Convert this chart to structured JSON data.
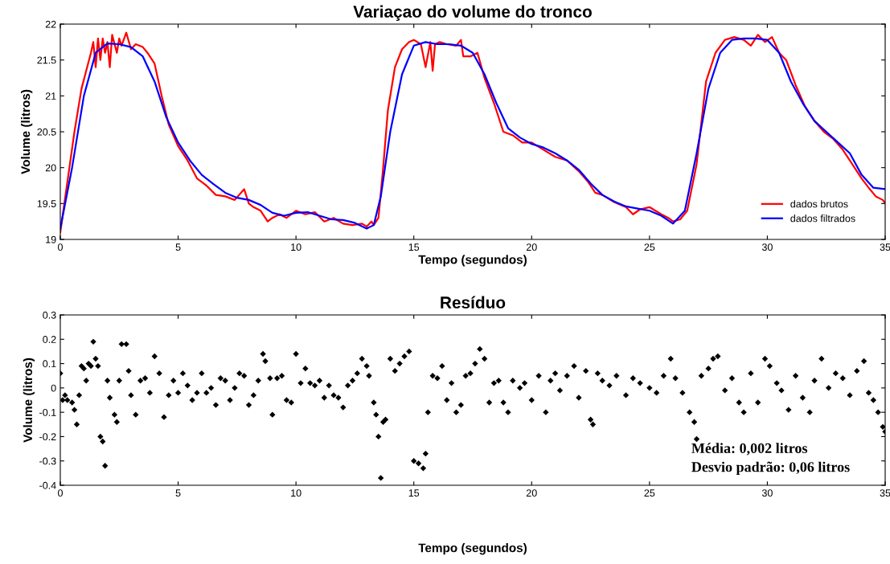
{
  "chart_data": [
    {
      "type": "line",
      "title": "Variaçao do volume do tronco",
      "xlabel": "Tempo (segundos)",
      "ylabel": "Volume (litros)",
      "xlim": [
        0,
        35
      ],
      "xticks": [
        0,
        5,
        10,
        15,
        20,
        25,
        30,
        35
      ],
      "ylim": [
        19,
        22
      ],
      "yticks": [
        19,
        19.5,
        20,
        20.5,
        21,
        21.5,
        22
      ],
      "grid": false,
      "legend": "lower right",
      "marker": "none",
      "line_style": "solid",
      "series": [
        {
          "name": "dados brutos",
          "color": "#ff0000",
          "x": [
            0,
            0.3,
            0.6,
            0.9,
            1.1,
            1.3,
            1.4,
            1.5,
            1.6,
            1.7,
            1.8,
            1.9,
            2.0,
            2.1,
            2.2,
            2.4,
            2.5,
            2.6,
            2.8,
            3.0,
            3.2,
            3.5,
            3.7,
            4.0,
            4.3,
            4.6,
            5.0,
            5.4,
            5.8,
            6.2,
            6.6,
            7.0,
            7.4,
            7.8,
            8.0,
            8.2,
            8.5,
            8.8,
            9.0,
            9.3,
            9.6,
            10.0,
            10.4,
            10.8,
            11.2,
            11.6,
            12.0,
            12.4,
            12.8,
            13.0,
            13.2,
            13.3,
            13.5,
            13.7,
            13.9,
            14.2,
            14.5,
            14.8,
            15.0,
            15.3,
            15.5,
            15.7,
            15.8,
            15.9,
            16.1,
            16.4,
            16.8,
            17.0,
            17.1,
            17.4,
            17.7,
            18.0,
            18.4,
            18.8,
            19.2,
            19.6,
            20.0,
            20.5,
            21.0,
            21.5,
            22.0,
            22.4,
            22.7,
            23.0,
            23.5,
            24.0,
            24.3,
            24.6,
            25.0,
            25.5,
            25.8,
            26.0,
            26.3,
            26.6,
            27.0,
            27.4,
            27.8,
            28.2,
            28.6,
            29.0,
            29.3,
            29.6,
            29.9,
            30.2,
            30.5,
            30.8,
            31.2,
            31.6,
            32.0,
            32.4,
            32.8,
            33.2,
            33.6,
            34.0,
            34.3,
            34.6,
            34.9,
            35.0
          ],
          "values": [
            19.1,
            19.8,
            20.5,
            21.1,
            21.35,
            21.6,
            21.75,
            21.4,
            21.8,
            21.5,
            21.8,
            21.6,
            21.75,
            21.4,
            21.85,
            21.6,
            21.8,
            21.7,
            21.88,
            21.65,
            21.72,
            21.68,
            21.6,
            21.45,
            21.0,
            20.6,
            20.3,
            20.1,
            19.85,
            19.75,
            19.62,
            19.6,
            19.55,
            19.7,
            19.5,
            19.45,
            19.4,
            19.25,
            19.3,
            19.35,
            19.3,
            19.4,
            19.35,
            19.38,
            19.25,
            19.3,
            19.22,
            19.2,
            19.22,
            19.18,
            19.25,
            19.2,
            19.3,
            20.0,
            20.8,
            21.4,
            21.65,
            21.75,
            21.78,
            21.72,
            21.4,
            21.75,
            21.35,
            21.72,
            21.75,
            21.72,
            21.7,
            21.78,
            21.55,
            21.55,
            21.6,
            21.25,
            20.9,
            20.5,
            20.45,
            20.35,
            20.35,
            20.25,
            20.15,
            20.1,
            19.95,
            19.8,
            19.65,
            19.62,
            19.52,
            19.45,
            19.35,
            19.42,
            19.45,
            19.35,
            19.3,
            19.25,
            19.28,
            19.4,
            20.05,
            21.2,
            21.6,
            21.78,
            21.82,
            21.78,
            21.7,
            21.85,
            21.75,
            21.82,
            21.6,
            21.5,
            21.15,
            20.85,
            20.65,
            20.5,
            20.4,
            20.25,
            20.05,
            19.85,
            19.72,
            19.6,
            19.55,
            19.5
          ]
        },
        {
          "name": "dados filtrados",
          "color": "#0000ff",
          "x": [
            0,
            0.5,
            1,
            1.5,
            2,
            2.5,
            3,
            3.5,
            4,
            4.5,
            5,
            5.5,
            6,
            6.5,
            7,
            7.5,
            8,
            8.5,
            9,
            9.5,
            10,
            10.5,
            11,
            11.5,
            12,
            12.5,
            13,
            13.3,
            13.6,
            14,
            14.5,
            15,
            15.5,
            16,
            16.5,
            17,
            17.5,
            18,
            18.5,
            19,
            19.5,
            20,
            20.5,
            21,
            21.5,
            22,
            22.5,
            23,
            23.5,
            24,
            24.5,
            25,
            25.5,
            26,
            26.5,
            27,
            27.5,
            28,
            28.5,
            29,
            29.5,
            30,
            30.5,
            31,
            31.5,
            32,
            32.5,
            33,
            33.5,
            34,
            34.5,
            35
          ],
          "values": [
            19.15,
            20.0,
            21.0,
            21.6,
            21.73,
            21.72,
            21.68,
            21.55,
            21.2,
            20.7,
            20.35,
            20.1,
            19.9,
            19.77,
            19.65,
            19.58,
            19.55,
            19.48,
            19.37,
            19.33,
            19.37,
            19.38,
            19.33,
            19.28,
            19.27,
            19.23,
            19.15,
            19.2,
            19.6,
            20.5,
            21.3,
            21.7,
            21.75,
            21.72,
            21.72,
            21.7,
            21.6,
            21.3,
            20.9,
            20.55,
            20.42,
            20.33,
            20.28,
            20.2,
            20.1,
            19.97,
            19.78,
            19.62,
            19.53,
            19.46,
            19.43,
            19.4,
            19.33,
            19.22,
            19.4,
            20.2,
            21.1,
            21.6,
            21.78,
            21.8,
            21.8,
            21.78,
            21.6,
            21.2,
            20.9,
            20.65,
            20.5,
            20.35,
            20.2,
            19.9,
            19.72,
            19.7
          ]
        }
      ]
    },
    {
      "type": "scatter",
      "title": "Resíduo",
      "xlabel": "Tempo (segundos)",
      "ylabel": "Volume (litros)",
      "xlim": [
        0,
        35
      ],
      "xticks": [
        0,
        5,
        10,
        15,
        20,
        25,
        30,
        35
      ],
      "ylim": [
        -0.4,
        0.3
      ],
      "yticks": [
        -0.4,
        -0.3,
        -0.2,
        -0.1,
        0,
        0.1,
        0.2,
        0.3
      ],
      "grid": false,
      "marker": "diamond",
      "annotations": [
        "Média: 0,002 litros",
        "Desvio padrão: 0,06 litros"
      ],
      "series": [
        {
          "color": "#000000",
          "x": [
            0.0,
            0.1,
            0.2,
            0.3,
            0.5,
            0.6,
            0.7,
            0.8,
            0.9,
            1.0,
            1.1,
            1.2,
            1.3,
            1.4,
            1.5,
            1.6,
            1.7,
            1.8,
            1.9,
            2.0,
            2.1,
            2.3,
            2.4,
            2.5,
            2.6,
            2.8,
            2.9,
            3.0,
            3.2,
            3.4,
            3.6,
            3.8,
            4.0,
            4.2,
            4.4,
            4.6,
            4.8,
            5.0,
            5.2,
            5.4,
            5.6,
            5.8,
            6.0,
            6.2,
            6.4,
            6.6,
            6.8,
            7.0,
            7.2,
            7.4,
            7.6,
            7.8,
            8.0,
            8.2,
            8.4,
            8.6,
            8.7,
            8.9,
            9.0,
            9.2,
            9.4,
            9.6,
            9.8,
            10.0,
            10.2,
            10.4,
            10.6,
            10.8,
            11.0,
            11.2,
            11.4,
            11.6,
            11.8,
            12.0,
            12.2,
            12.4,
            12.6,
            12.8,
            13.0,
            13.1,
            13.3,
            13.4,
            13.5,
            13.6,
            13.7,
            13.8,
            14.0,
            14.2,
            14.4,
            14.6,
            14.8,
            15.0,
            15.2,
            15.4,
            15.5,
            15.6,
            15.8,
            16.0,
            16.2,
            16.4,
            16.6,
            16.8,
            17.0,
            17.2,
            17.4,
            17.6,
            17.8,
            18.0,
            18.2,
            18.4,
            18.6,
            18.8,
            19.0,
            19.2,
            19.5,
            19.7,
            20.0,
            20.3,
            20.6,
            20.8,
            21.0,
            21.2,
            21.5,
            21.8,
            22.0,
            22.3,
            22.5,
            22.6,
            22.8,
            23.0,
            23.3,
            23.6,
            24.0,
            24.3,
            24.6,
            25.0,
            25.3,
            25.6,
            25.9,
            26.1,
            26.4,
            26.7,
            26.9,
            27.0,
            27.2,
            27.5,
            27.7,
            27.9,
            28.2,
            28.5,
            28.8,
            29.0,
            29.3,
            29.6,
            29.9,
            30.1,
            30.4,
            30.6,
            30.9,
            31.2,
            31.5,
            31.8,
            32.0,
            32.3,
            32.6,
            32.9,
            33.2,
            33.5,
            33.8,
            34.1,
            34.3,
            34.5,
            34.7,
            34.9,
            35.0
          ],
          "values": [
            0.06,
            -0.05,
            -0.03,
            -0.05,
            -0.06,
            -0.09,
            -0.15,
            -0.03,
            0.09,
            0.08,
            0.03,
            0.1,
            0.09,
            0.19,
            0.12,
            0.09,
            -0.2,
            -0.22,
            -0.32,
            0.03,
            -0.04,
            -0.11,
            -0.14,
            0.03,
            0.18,
            0.18,
            0.07,
            -0.03,
            -0.11,
            0.03,
            0.04,
            -0.02,
            0.13,
            0.06,
            -0.12,
            -0.03,
            0.03,
            -0.02,
            0.06,
            0.01,
            -0.05,
            -0.02,
            0.06,
            -0.02,
            0.0,
            -0.07,
            0.04,
            0.03,
            -0.05,
            0.0,
            0.06,
            0.05,
            -0.07,
            -0.03,
            0.03,
            0.14,
            0.11,
            0.04,
            -0.11,
            0.04,
            0.05,
            -0.05,
            -0.06,
            0.14,
            0.02,
            0.08,
            0.02,
            0.01,
            0.03,
            -0.04,
            0.01,
            -0.03,
            -0.04,
            -0.08,
            0.01,
            0.03,
            0.06,
            0.12,
            0.09,
            0.05,
            -0.06,
            -0.11,
            -0.2,
            -0.37,
            -0.14,
            -0.13,
            0.12,
            0.07,
            0.1,
            0.13,
            0.15,
            -0.3,
            -0.31,
            -0.33,
            -0.27,
            -0.1,
            0.05,
            0.04,
            0.09,
            -0.05,
            0.02,
            -0.1,
            -0.07,
            0.05,
            0.06,
            0.1,
            0.16,
            0.12,
            -0.06,
            0.02,
            0.03,
            -0.06,
            -0.1,
            0.03,
            0.0,
            0.02,
            -0.05,
            0.05,
            -0.1,
            0.03,
            0.06,
            -0.01,
            0.05,
            0.09,
            -0.04,
            0.07,
            -0.13,
            -0.15,
            0.06,
            0.03,
            0.01,
            0.05,
            -0.03,
            0.04,
            0.02,
            0.0,
            -0.02,
            0.05,
            0.12,
            0.04,
            -0.02,
            -0.1,
            -0.14,
            -0.21,
            0.05,
            0.08,
            0.12,
            0.13,
            -0.01,
            0.04,
            -0.06,
            -0.1,
            0.06,
            -0.06,
            0.12,
            0.09,
            0.02,
            -0.01,
            -0.09,
            0.05,
            -0.04,
            -0.1,
            0.03,
            0.12,
            0.0,
            0.06,
            0.04,
            -0.03,
            0.07,
            0.11,
            -0.02,
            -0.05,
            -0.1,
            -0.16,
            -0.18
          ]
        }
      ]
    }
  ]
}
